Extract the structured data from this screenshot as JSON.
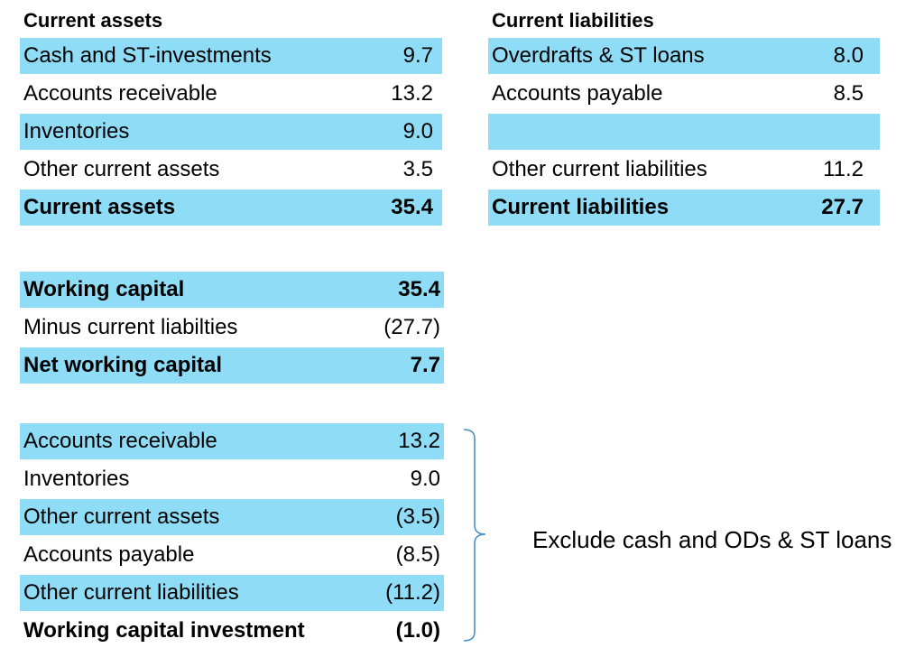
{
  "current_assets": {
    "title": "Current assets",
    "rows": [
      {
        "label": "Cash and ST-investments",
        "value": "9.7"
      },
      {
        "label": "Accounts receivable",
        "value": "13.2"
      },
      {
        "label": "Inventories",
        "value": "9.0"
      },
      {
        "label": "Other current assets",
        "value": "3.5"
      },
      {
        "label": "Current assets",
        "value": "35.4"
      }
    ]
  },
  "current_liabilities": {
    "title": "Current liabilities",
    "rows": [
      {
        "label": "Overdrafts & ST loans",
        "value": "8.0"
      },
      {
        "label": "Accounts payable",
        "value": "8.5"
      },
      {
        "label": "",
        "value": ""
      },
      {
        "label": "Other current liabilities",
        "value": "11.2"
      },
      {
        "label": "Current liabilities",
        "value": "27.7"
      }
    ]
  },
  "working_capital": {
    "rows": [
      {
        "label": "Working capital",
        "value": "35.4"
      },
      {
        "label": "Minus current liabilties",
        "value": "(27.7)"
      },
      {
        "label": "Net working capital",
        "value": "7.7"
      }
    ]
  },
  "working_capital_investment": {
    "rows": [
      {
        "label": "Accounts receivable",
        "value": "13.2"
      },
      {
        "label": "Inventories",
        "value": "9.0"
      },
      {
        "label": "Other current assets",
        "value": "(3.5)"
      },
      {
        "label": "Accounts payable",
        "value": "(8.5)"
      },
      {
        "label": "Other current liabilities",
        "value": "(11.2)"
      },
      {
        "label": "Working capital investment",
        "value": "(1.0)"
      }
    ]
  },
  "annotation": {
    "text": "Exclude cash and ODs & ST loans"
  },
  "colors": {
    "row_shade": "#8fdcf7",
    "brace": "#4a90c8"
  }
}
